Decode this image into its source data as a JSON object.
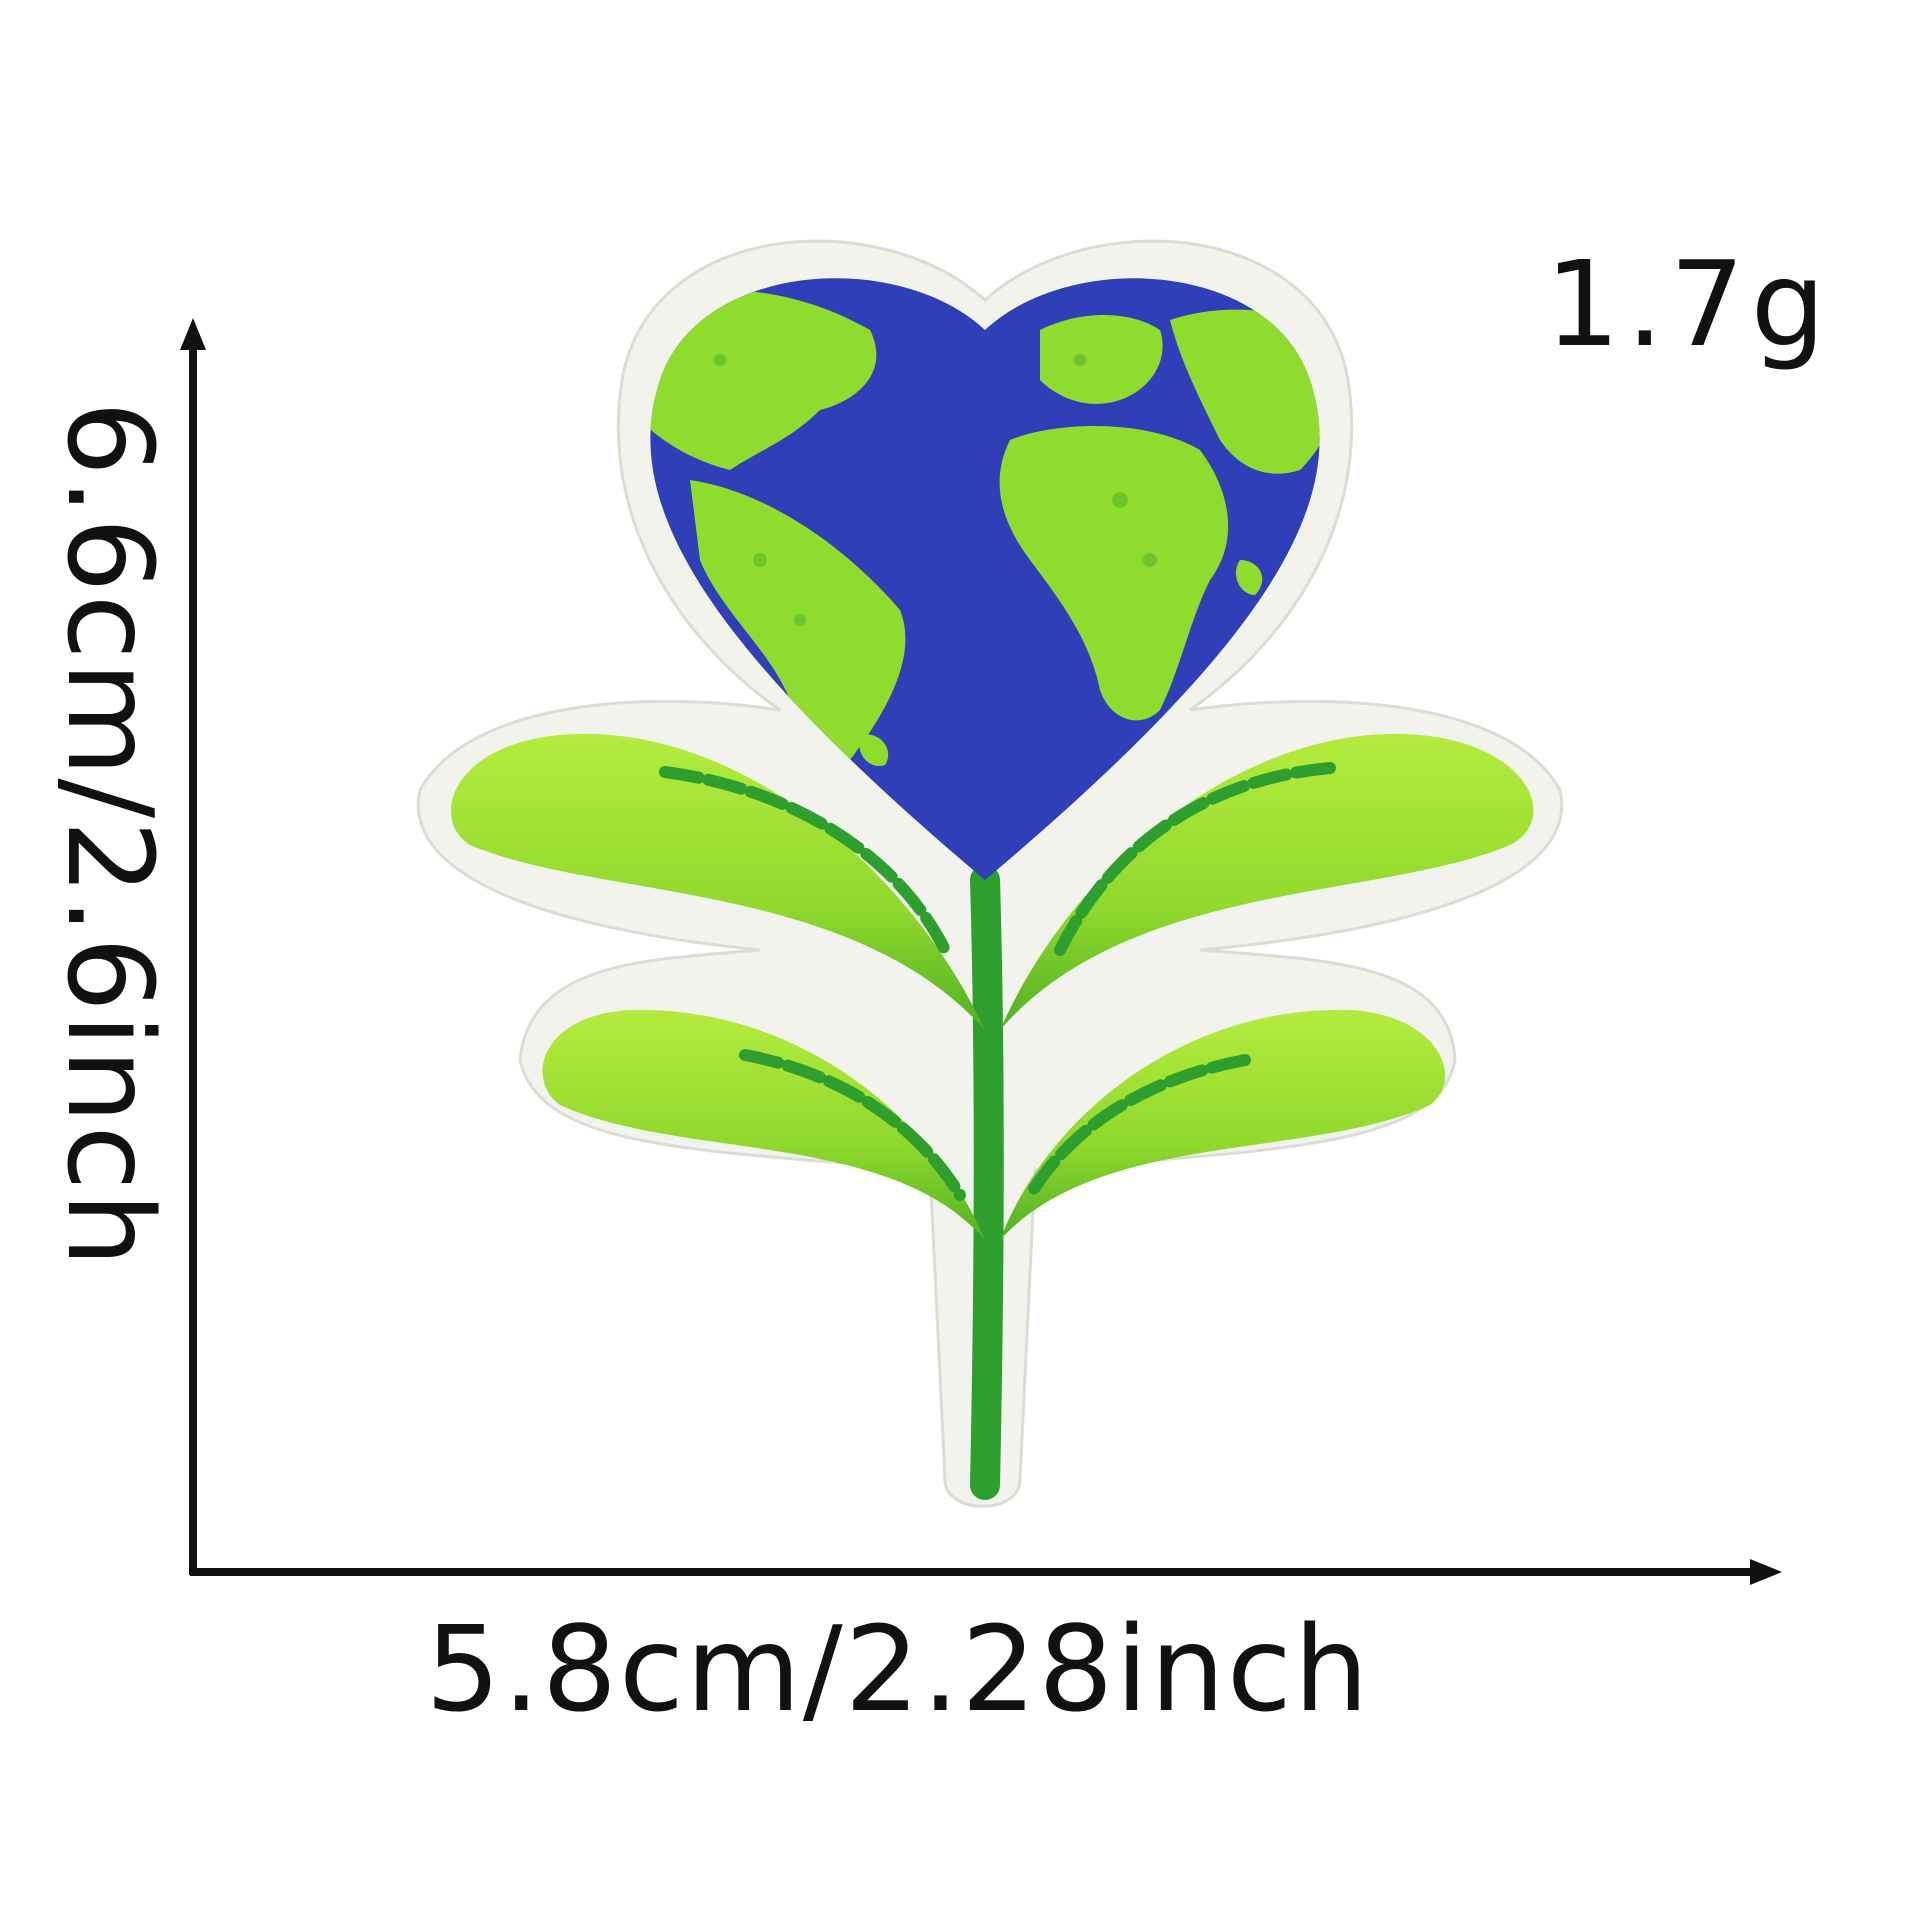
{
  "weight": "1.7g",
  "dimensions": {
    "height": "6.6cm/2.6inch",
    "width": "5.8cm/2.28inch"
  },
  "colors": {
    "ocean": "#2f3fb8",
    "land": "#8fdc2e",
    "leaf_light": "#a6e23a",
    "leaf_dark": "#4caf22",
    "stem": "#2e9e2e",
    "border": "#f4f4ef",
    "axis": "#111111"
  }
}
